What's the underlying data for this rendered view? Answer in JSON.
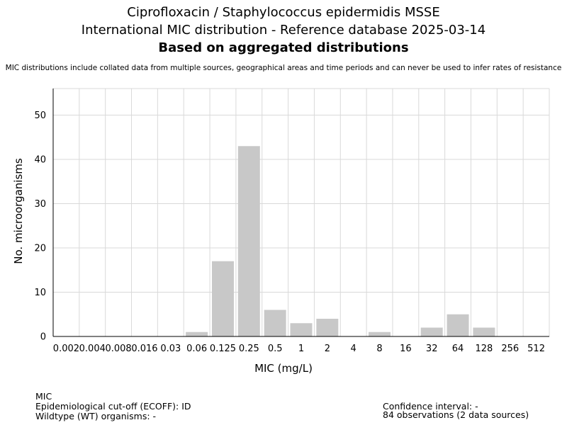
{
  "header": {
    "title_line1": "Ciprofloxacin / Staphylococcus epidermidis MSSE",
    "title_line2": "International MIC distribution - Reference database 2025-03-14",
    "title_line3": "Based on aggregated distributions",
    "note": "MIC distributions include collated data from multiple sources, geographical areas and time periods and can never be used to infer rates of resistance"
  },
  "chart_data": {
    "type": "bar",
    "xlabel": "MIC (mg/L)",
    "ylabel": "No. microorganisms",
    "categories": [
      "0.002",
      "0.004",
      "0.008",
      "0.016",
      "0.03",
      "0.06",
      "0.125",
      "0.25",
      "0.5",
      "1",
      "2",
      "4",
      "8",
      "16",
      "32",
      "64",
      "128",
      "256",
      "512"
    ],
    "values": [
      0,
      0,
      0,
      0,
      0,
      1,
      17,
      43,
      6,
      3,
      4,
      0,
      1,
      0,
      2,
      5,
      2,
      0,
      0
    ],
    "ylim": [
      0,
      56
    ],
    "yticks": [
      0,
      10,
      20,
      30,
      40,
      50
    ],
    "grid": true,
    "bar_color": "#c8c8c8",
    "grid_color": "#d9d9d9"
  },
  "footer": {
    "mic_label": "MIC",
    "ecoff": "Epidemiological cut-off (ECOFF): ID",
    "wt": "Wildtype (WT) organisms:  -",
    "ci": "Confidence interval: -",
    "obs": "84 observations (2 data sources)"
  }
}
